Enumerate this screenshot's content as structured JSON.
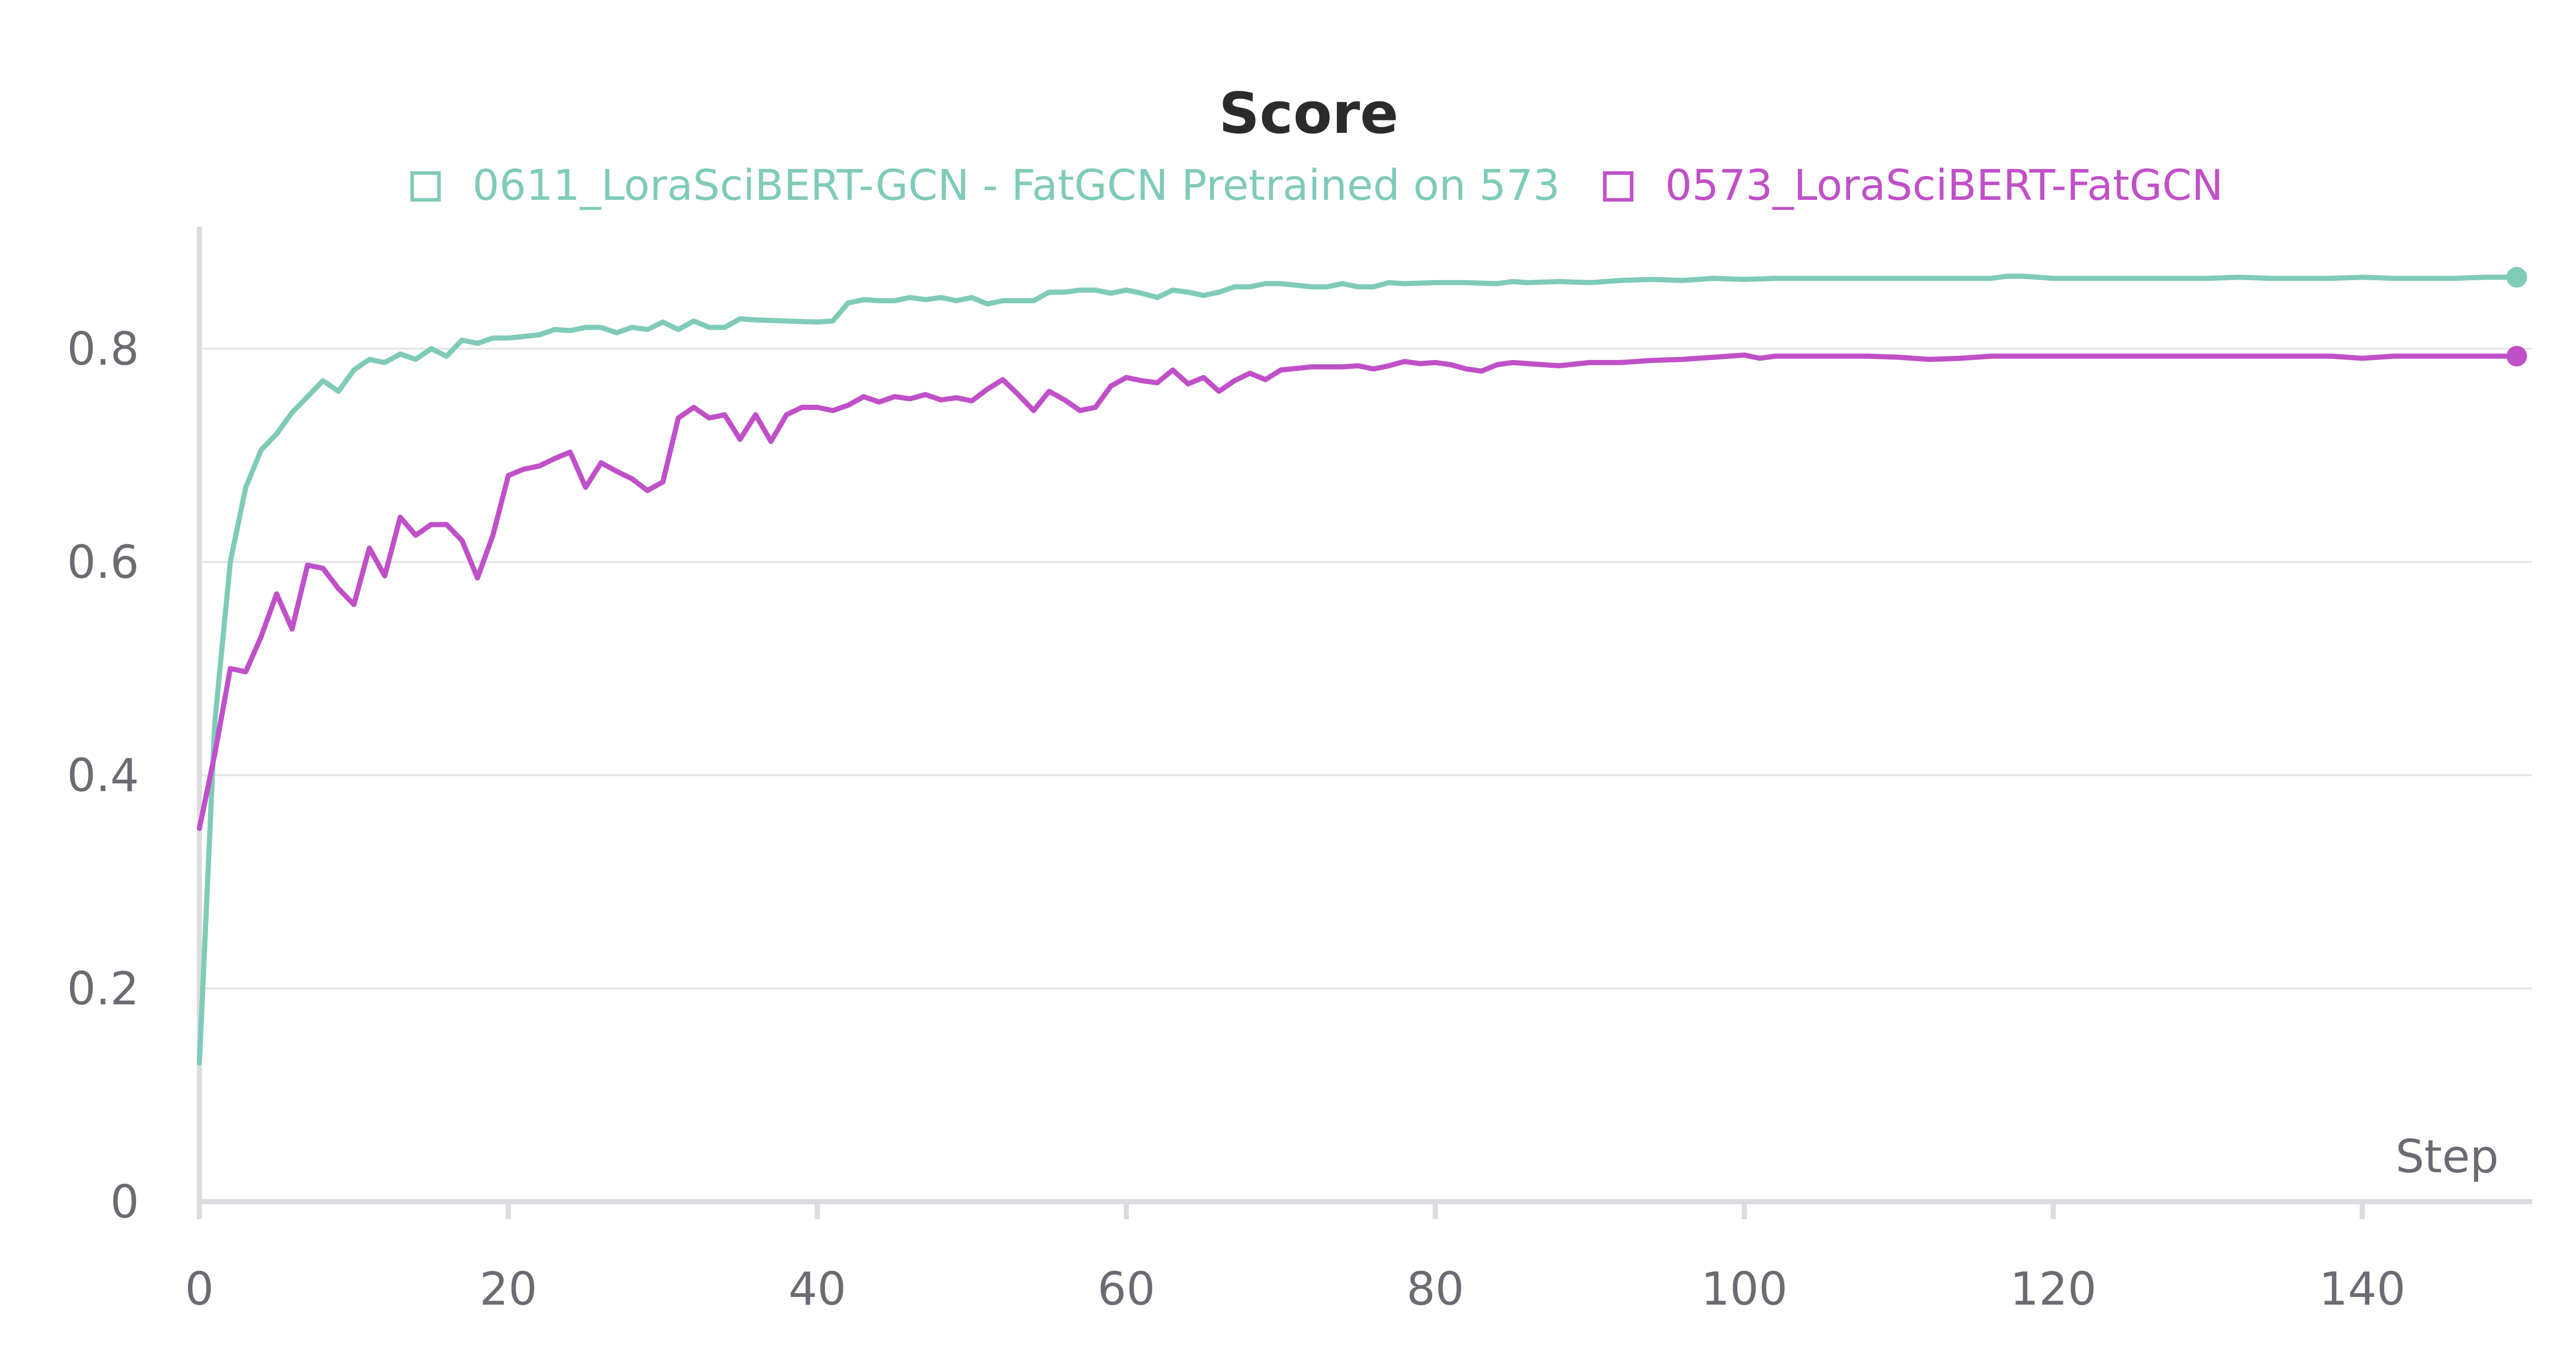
{
  "chart_data": {
    "type": "line",
    "title": "Score",
    "xlabel": "Step",
    "ylabel": "",
    "xlim": [
      0,
      151
    ],
    "ylim": [
      0,
      0.9
    ],
    "xticks": [
      "0",
      "20",
      "40",
      "60",
      "80",
      "100",
      "120",
      "140"
    ],
    "yticks": [
      "0",
      "0.2",
      "0.4",
      "0.6",
      "0.8"
    ],
    "grid": true,
    "legend": "top-center",
    "series": [
      {
        "name": "0611_LoraSciBERT-GCN - FatGCN Pretrained on 573",
        "color": "#7fcbb8",
        "points": [
          [
            0,
            0.13
          ],
          [
            1,
            0.45
          ],
          [
            2,
            0.6
          ],
          [
            3,
            0.67
          ],
          [
            4,
            0.705
          ],
          [
            5,
            0.72
          ],
          [
            6,
            0.74
          ],
          [
            7,
            0.755
          ],
          [
            8,
            0.77
          ],
          [
            9,
            0.76
          ],
          [
            10,
            0.78
          ],
          [
            11,
            0.79
          ],
          [
            12,
            0.787
          ],
          [
            13,
            0.795
          ],
          [
            14,
            0.79
          ],
          [
            15,
            0.8
          ],
          [
            16,
            0.793
          ],
          [
            17,
            0.808
          ],
          [
            18,
            0.805
          ],
          [
            19,
            0.81
          ],
          [
            20,
            0.81
          ],
          [
            22,
            0.813
          ],
          [
            23,
            0.818
          ],
          [
            24,
            0.817
          ],
          [
            25,
            0.82
          ],
          [
            26,
            0.82
          ],
          [
            27,
            0.815
          ],
          [
            28,
            0.82
          ],
          [
            29,
            0.818
          ],
          [
            30,
            0.825
          ],
          [
            31,
            0.818
          ],
          [
            32,
            0.826
          ],
          [
            33,
            0.82
          ],
          [
            34,
            0.82
          ],
          [
            35,
            0.828
          ],
          [
            36,
            0.827
          ],
          [
            38,
            0.826
          ],
          [
            40,
            0.825
          ],
          [
            41,
            0.826
          ],
          [
            42,
            0.843
          ],
          [
            43,
            0.846
          ],
          [
            44,
            0.845
          ],
          [
            45,
            0.845
          ],
          [
            46,
            0.848
          ],
          [
            47,
            0.846
          ],
          [
            48,
            0.848
          ],
          [
            49,
            0.845
          ],
          [
            50,
            0.848
          ],
          [
            51,
            0.842
          ],
          [
            52,
            0.845
          ],
          [
            54,
            0.845
          ],
          [
            55,
            0.853
          ],
          [
            56,
            0.853
          ],
          [
            57,
            0.855
          ],
          [
            58,
            0.855
          ],
          [
            59,
            0.852
          ],
          [
            60,
            0.855
          ],
          [
            61,
            0.852
          ],
          [
            62,
            0.848
          ],
          [
            63,
            0.855
          ],
          [
            64,
            0.853
          ],
          [
            65,
            0.85
          ],
          [
            66,
            0.853
          ],
          [
            67,
            0.858
          ],
          [
            68,
            0.858
          ],
          [
            69,
            0.861
          ],
          [
            70,
            0.861
          ],
          [
            72,
            0.858
          ],
          [
            73,
            0.858
          ],
          [
            74,
            0.861
          ],
          [
            75,
            0.858
          ],
          [
            76,
            0.858
          ],
          [
            77,
            0.862
          ],
          [
            78,
            0.861
          ],
          [
            80,
            0.862
          ],
          [
            82,
            0.862
          ],
          [
            84,
            0.861
          ],
          [
            85,
            0.863
          ],
          [
            86,
            0.862
          ],
          [
            88,
            0.863
          ],
          [
            90,
            0.862
          ],
          [
            92,
            0.864
          ],
          [
            94,
            0.865
          ],
          [
            96,
            0.864
          ],
          [
            98,
            0.866
          ],
          [
            100,
            0.865
          ],
          [
            102,
            0.866
          ],
          [
            104,
            0.866
          ],
          [
            106,
            0.866
          ],
          [
            108,
            0.866
          ],
          [
            110,
            0.866
          ],
          [
            112,
            0.866
          ],
          [
            114,
            0.866
          ],
          [
            116,
            0.866
          ],
          [
            117,
            0.868
          ],
          [
            118,
            0.868
          ],
          [
            120,
            0.866
          ],
          [
            122,
            0.866
          ],
          [
            124,
            0.866
          ],
          [
            126,
            0.866
          ],
          [
            128,
            0.866
          ],
          [
            130,
            0.866
          ],
          [
            132,
            0.867
          ],
          [
            134,
            0.866
          ],
          [
            136,
            0.866
          ],
          [
            138,
            0.866
          ],
          [
            140,
            0.867
          ],
          [
            142,
            0.866
          ],
          [
            144,
            0.866
          ],
          [
            146,
            0.866
          ],
          [
            148,
            0.867
          ],
          [
            150,
            0.867
          ]
        ]
      },
      {
        "name": "0573_LoraSciBERT-FatGCN",
        "color": "#c050c8",
        "points": [
          [
            0,
            0.35
          ],
          [
            1,
            0.42
          ],
          [
            2,
            0.5
          ],
          [
            3,
            0.497
          ],
          [
            4,
            0.53
          ],
          [
            5,
            0.57
          ],
          [
            6,
            0.537
          ],
          [
            7,
            0.597
          ],
          [
            8,
            0.594
          ],
          [
            9,
            0.575
          ],
          [
            10,
            0.56
          ],
          [
            11,
            0.613
          ],
          [
            12,
            0.587
          ],
          [
            13,
            0.642
          ],
          [
            14,
            0.625
          ],
          [
            15,
            0.635
          ],
          [
            16,
            0.635
          ],
          [
            17,
            0.62
          ],
          [
            18,
            0.585
          ],
          [
            19,
            0.625
          ],
          [
            20,
            0.681
          ],
          [
            21,
            0.687
          ],
          [
            22,
            0.69
          ],
          [
            23,
            0.697
          ],
          [
            24,
            0.703
          ],
          [
            25,
            0.67
          ],
          [
            26,
            0.693
          ],
          [
            27,
            0.685
          ],
          [
            28,
            0.678
          ],
          [
            29,
            0.667
          ],
          [
            30,
            0.675
          ],
          [
            31,
            0.735
          ],
          [
            32,
            0.745
          ],
          [
            33,
            0.735
          ],
          [
            34,
            0.738
          ],
          [
            35,
            0.715
          ],
          [
            36,
            0.738
          ],
          [
            37,
            0.713
          ],
          [
            38,
            0.738
          ],
          [
            39,
            0.745
          ],
          [
            40,
            0.745
          ],
          [
            41,
            0.742
          ],
          [
            42,
            0.747
          ],
          [
            43,
            0.755
          ],
          [
            44,
            0.75
          ],
          [
            45,
            0.755
          ],
          [
            46,
            0.753
          ],
          [
            47,
            0.757
          ],
          [
            48,
            0.752
          ],
          [
            49,
            0.754
          ],
          [
            50,
            0.751
          ],
          [
            51,
            0.762
          ],
          [
            52,
            0.771
          ],
          [
            53,
            0.757
          ],
          [
            54,
            0.742
          ],
          [
            55,
            0.76
          ],
          [
            56,
            0.752
          ],
          [
            57,
            0.742
          ],
          [
            58,
            0.745
          ],
          [
            59,
            0.765
          ],
          [
            60,
            0.773
          ],
          [
            61,
            0.77
          ],
          [
            62,
            0.768
          ],
          [
            63,
            0.78
          ],
          [
            64,
            0.767
          ],
          [
            65,
            0.773
          ],
          [
            66,
            0.76
          ],
          [
            67,
            0.77
          ],
          [
            68,
            0.777
          ],
          [
            69,
            0.771
          ],
          [
            70,
            0.78
          ],
          [
            72,
            0.783
          ],
          [
            74,
            0.783
          ],
          [
            75,
            0.784
          ],
          [
            76,
            0.781
          ],
          [
            77,
            0.784
          ],
          [
            78,
            0.788
          ],
          [
            79,
            0.786
          ],
          [
            80,
            0.787
          ],
          [
            81,
            0.785
          ],
          [
            82,
            0.781
          ],
          [
            83,
            0.779
          ],
          [
            84,
            0.785
          ],
          [
            85,
            0.787
          ],
          [
            86,
            0.786
          ],
          [
            88,
            0.784
          ],
          [
            90,
            0.787
          ],
          [
            92,
            0.787
          ],
          [
            94,
            0.789
          ],
          [
            96,
            0.79
          ],
          [
            98,
            0.792
          ],
          [
            100,
            0.794
          ],
          [
            101,
            0.791
          ],
          [
            102,
            0.793
          ],
          [
            104,
            0.793
          ],
          [
            106,
            0.793
          ],
          [
            108,
            0.793
          ],
          [
            110,
            0.792
          ],
          [
            112,
            0.79
          ],
          [
            114,
            0.791
          ],
          [
            116,
            0.793
          ],
          [
            118,
            0.793
          ],
          [
            120,
            0.793
          ],
          [
            122,
            0.793
          ],
          [
            124,
            0.793
          ],
          [
            126,
            0.793
          ],
          [
            128,
            0.793
          ],
          [
            130,
            0.793
          ],
          [
            132,
            0.793
          ],
          [
            134,
            0.793
          ],
          [
            136,
            0.793
          ],
          [
            138,
            0.793
          ],
          [
            140,
            0.791
          ],
          [
            142,
            0.793
          ],
          [
            144,
            0.793
          ],
          [
            146,
            0.793
          ],
          [
            148,
            0.793
          ],
          [
            150,
            0.793
          ]
        ]
      }
    ]
  }
}
